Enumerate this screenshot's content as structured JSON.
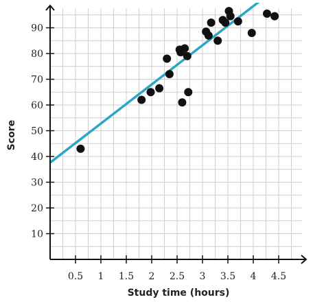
{
  "chart_data": {
    "type": "scatter",
    "title": "",
    "xlabel": "Study time (hours)",
    "ylabel": "Score",
    "xlim": [
      0,
      5
    ],
    "ylim": [
      0,
      100
    ],
    "x_ticks": [
      0.5,
      1,
      1.5,
      2,
      2.5,
      3,
      3.5,
      4,
      4.5
    ],
    "x_tick_labels": [
      "0.5",
      "1",
      "1.5",
      "2",
      "2.5",
      "3",
      "3.5",
      "4",
      "4.5"
    ],
    "y_ticks": [
      10,
      20,
      30,
      40,
      50,
      60,
      70,
      80,
      90
    ],
    "y_tick_labels": [
      "10",
      "20",
      "30",
      "40",
      "50",
      "60",
      "70",
      "80",
      "90"
    ],
    "grid": true,
    "trend_line": {
      "slope": 15.2,
      "intercept": 37.6,
      "color": "#2aa7c4"
    },
    "points": [
      {
        "x": 0.6,
        "y": 43
      },
      {
        "x": 1.8,
        "y": 62
      },
      {
        "x": 1.98,
        "y": 65
      },
      {
        "x": 2.15,
        "y": 66.5
      },
      {
        "x": 2.3,
        "y": 78
      },
      {
        "x": 2.35,
        "y": 72
      },
      {
        "x": 2.55,
        "y": 81.5
      },
      {
        "x": 2.57,
        "y": 80.5
      },
      {
        "x": 2.6,
        "y": 61
      },
      {
        "x": 2.65,
        "y": 82
      },
      {
        "x": 2.7,
        "y": 79
      },
      {
        "x": 2.72,
        "y": 65
      },
      {
        "x": 3.07,
        "y": 88.5
      },
      {
        "x": 3.12,
        "y": 87
      },
      {
        "x": 3.17,
        "y": 92
      },
      {
        "x": 3.3,
        "y": 85
      },
      {
        "x": 3.4,
        "y": 93
      },
      {
        "x": 3.45,
        "y": 92
      },
      {
        "x": 3.52,
        "y": 96.5
      },
      {
        "x": 3.55,
        "y": 94.5
      },
      {
        "x": 3.7,
        "y": 92.5
      },
      {
        "x": 3.97,
        "y": 88
      },
      {
        "x": 4.27,
        "y": 95.5
      },
      {
        "x": 4.42,
        "y": 94.5
      }
    ]
  }
}
